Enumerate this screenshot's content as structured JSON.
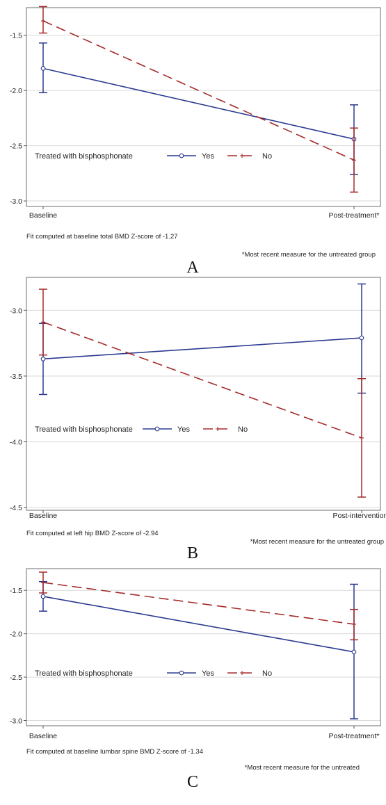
{
  "chart_data": [
    {
      "type": "line",
      "panel_label": "A",
      "categories": [
        "Baseline",
        "Post-treatment*"
      ],
      "ylim": [
        -3.05,
        -1.25
      ],
      "yticks": [
        -1.5,
        -2.0,
        -2.5,
        -3.0
      ],
      "ytick_labels": [
        "-1.5",
        "-2.0",
        "-2.5",
        "-3.0"
      ],
      "grid": true,
      "legend_title": "Treated with bisphosphonate",
      "legend_placement": "bottom-left inside",
      "fit_note": "Fit computed at baseline total BMD Z-score of -1.27",
      "footnote": "*Most recent measure for the untreated group",
      "series": [
        {
          "name": "Yes",
          "color": "#2b3a8f",
          "dash": "solid",
          "marker": "circle",
          "values": [
            -1.8,
            -2.44
          ],
          "lower": [
            -2.02,
            -2.76
          ],
          "upper": [
            -1.57,
            -2.13
          ]
        },
        {
          "name": "No",
          "color": "#a52a2a",
          "dash": "dashed",
          "marker": "plus",
          "values": [
            -1.37,
            -2.63
          ],
          "lower": [
            -1.48,
            -2.92
          ],
          "upper": [
            -1.24,
            -2.34
          ]
        }
      ]
    },
    {
      "type": "line",
      "panel_label": "B",
      "categories": [
        "Baseline",
        "Post-intervention*"
      ],
      "ylim": [
        -4.52,
        -2.75
      ],
      "yticks": [
        -3.0,
        -3.5,
        -4.0,
        -4.5
      ],
      "ytick_labels": [
        "-3.0",
        "-3.5",
        "-4.0",
        "-4.5"
      ],
      "grid": true,
      "legend_title": "Treated with bisphosphonate",
      "legend_placement": "bottom-left inside",
      "fit_note": "Fit computed at left hip BMD Z-score of -2.94",
      "footnote": "*Most recent measure for the untreated group",
      "series": [
        {
          "name": "Yes",
          "color": "#2b3a8f",
          "dash": "solid",
          "marker": "circle",
          "values": [
            -3.37,
            -3.21
          ],
          "lower": [
            -3.64,
            -3.63
          ],
          "upper": [
            -3.1,
            -2.8
          ]
        },
        {
          "name": "No",
          "color": "#a52a2a",
          "dash": "dashed",
          "marker": "plus",
          "values": [
            -3.09,
            -3.97
          ],
          "lower": [
            -3.34,
            -4.42
          ],
          "upper": [
            -2.84,
            -3.52
          ]
        }
      ]
    },
    {
      "type": "line",
      "panel_label": "C",
      "categories": [
        "Baseline",
        "Post-treatment*"
      ],
      "ylim": [
        -3.06,
        -1.25
      ],
      "yticks": [
        -1.5,
        -2.0,
        -2.5,
        -3.0
      ],
      "ytick_labels": [
        "-1.5",
        "-2.0",
        "-2.5",
        "-3.0"
      ],
      "grid": true,
      "legend_title": "Treated with bisphosphonate",
      "legend_placement": "bottom-left inside",
      "fit_note": "Fit computed at baseline lumbar spine BMD Z-score of -1.34",
      "footnote": "*Most recent measure for the untreated",
      "series": [
        {
          "name": "Yes",
          "color": "#2b3a8f",
          "dash": "solid",
          "marker": "circle",
          "values": [
            -1.57,
            -2.21
          ],
          "lower": [
            -1.74,
            -2.98
          ],
          "upper": [
            -1.4,
            -1.43
          ]
        },
        {
          "name": "No",
          "color": "#a52a2a",
          "dash": "dashed",
          "marker": "plus",
          "values": [
            -1.41,
            -1.89
          ],
          "lower": [
            -1.53,
            -2.07
          ],
          "upper": [
            -1.29,
            -1.72
          ]
        }
      ]
    }
  ]
}
